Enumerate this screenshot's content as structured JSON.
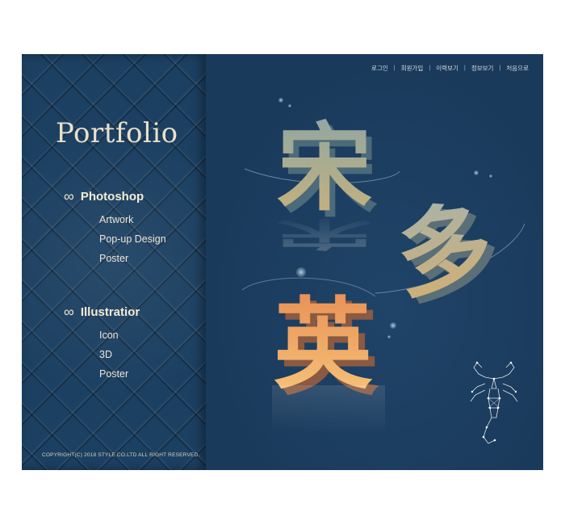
{
  "sidebar": {
    "title": "Portfolio",
    "groups": [
      {
        "symbol": "∞",
        "title": "Photoshop",
        "items": [
          "Artwork",
          "Pop-up Design",
          "Poster"
        ]
      },
      {
        "symbol": "∞",
        "title": "Illustratior",
        "items": [
          "Icon",
          "3D",
          "Poster"
        ]
      }
    ],
    "copyright": "COPYRIGHT(C) 2018 STYLE CO.LTD ALL RIGHT RESERVED."
  },
  "topnav": {
    "separator": "|",
    "links": [
      "로그인",
      "회원가입",
      "이력보기",
      "정보보기",
      "처음으로"
    ]
  },
  "artwork": {
    "characters": [
      "宋",
      "多",
      "英"
    ],
    "colors": {
      "char1_top": "#8fa6a4",
      "char1_bottom": "#c9b27a",
      "char2_top": "#aab2a8",
      "char2_bottom": "#d3b071",
      "char3_top": "#e98f55",
      "char3_bottom": "#f6c57a",
      "frame_bg": "#1b3b5c",
      "sidebar_text": "#e9e1c9"
    },
    "scorpion_icon": "scorpion-constellation-icon"
  }
}
